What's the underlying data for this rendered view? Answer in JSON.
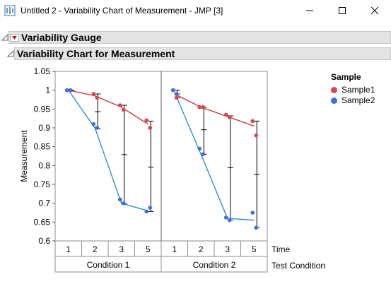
{
  "window": {
    "title": "Untitled 2 - Variability Chart of Measurement - JMP [3]",
    "app_icon": "jmp-icon",
    "controls": [
      "minimize-icon",
      "maximize-icon",
      "close-icon"
    ]
  },
  "report": {
    "outline_title": "Variability Gauge",
    "chart_outline_title": "Variability Chart for Measurement"
  },
  "legend": {
    "title": "Sample",
    "items": [
      {
        "label": "Sample1",
        "color": "#d9434e"
      },
      {
        "label": "Sample2",
        "color": "#3f6fd8"
      }
    ]
  },
  "colors": {
    "sample1": "#d9434e",
    "sample2": "#3f6fd8",
    "sample1_line": "#d02a2a",
    "sample2_line": "#1e88c8",
    "header_bg": "#e3e3e3"
  },
  "chart_data": {
    "type": "line",
    "ylabel": "Measurement",
    "xlabel_inner": "Time",
    "xlabel_outer": "Test Condition",
    "ylim": [
      0.6,
      1.05
    ],
    "yticks": [
      0.6,
      0.65,
      0.7,
      0.75,
      0.8,
      0.85,
      0.9,
      0.95,
      1,
      1.05
    ],
    "ytick_labels": [
      "0.6",
      "0.65",
      "0.7",
      "0.75",
      "0.8",
      "0.85",
      "0.9",
      "0.95",
      "1",
      "1.05"
    ],
    "groups": [
      "Condition 1",
      "Condition 2"
    ],
    "categories": [
      "1",
      "2",
      "3",
      "5"
    ],
    "series": [
      {
        "name": "Sample1",
        "means": [
          [
            1.0,
            0.985,
            0.955,
            0.91
          ],
          [
            0.99,
            0.955,
            0.93,
            0.905
          ]
        ],
        "points": [
          [
            [
              1.0,
              1.0
            ],
            [
              0.99,
              0.98
            ],
            [
              0.96,
              0.948
            ],
            [
              0.92,
              0.9
            ]
          ],
          [
            [
              1.0,
              0.98
            ],
            [
              0.955,
              0.955
            ],
            [
              0.935,
              0.928
            ],
            [
              0.918,
              0.88
            ]
          ]
        ]
      },
      {
        "name": "Sample2",
        "means": [
          [
            1.0,
            0.9,
            0.7,
            0.68
          ],
          [
            0.995,
            0.83,
            0.66,
            0.655
          ]
        ],
        "points": [
          [
            [
              1.0,
              1.0
            ],
            [
              0.91,
              0.9
            ],
            [
              0.71,
              0.7
            ],
            [
              0.678,
              0.688
            ]
          ],
          [
            [
              1.0,
              0.99
            ],
            [
              0.845,
              0.83
            ],
            [
              0.662,
              0.655
            ],
            [
              0.675,
              0.635
            ]
          ]
        ]
      }
    ],
    "ranges": [
      [
        {
          "min": 0.998,
          "max": 1.0,
          "mean": 1.0
        },
        {
          "min": 0.898,
          "max": 0.99,
          "mean": 0.943
        },
        {
          "min": 0.698,
          "max": 0.96,
          "mean": 0.829
        },
        {
          "min": 0.678,
          "max": 0.918,
          "mean": 0.796
        }
      ],
      [
        {
          "min": 0.98,
          "max": 1.0,
          "mean": 0.99
        },
        {
          "min": 0.83,
          "max": 0.955,
          "mean": 0.895
        },
        {
          "min": 0.655,
          "max": 0.932,
          "mean": 0.794
        },
        {
          "min": 0.635,
          "max": 0.918,
          "mean": 0.777
        }
      ]
    ]
  }
}
